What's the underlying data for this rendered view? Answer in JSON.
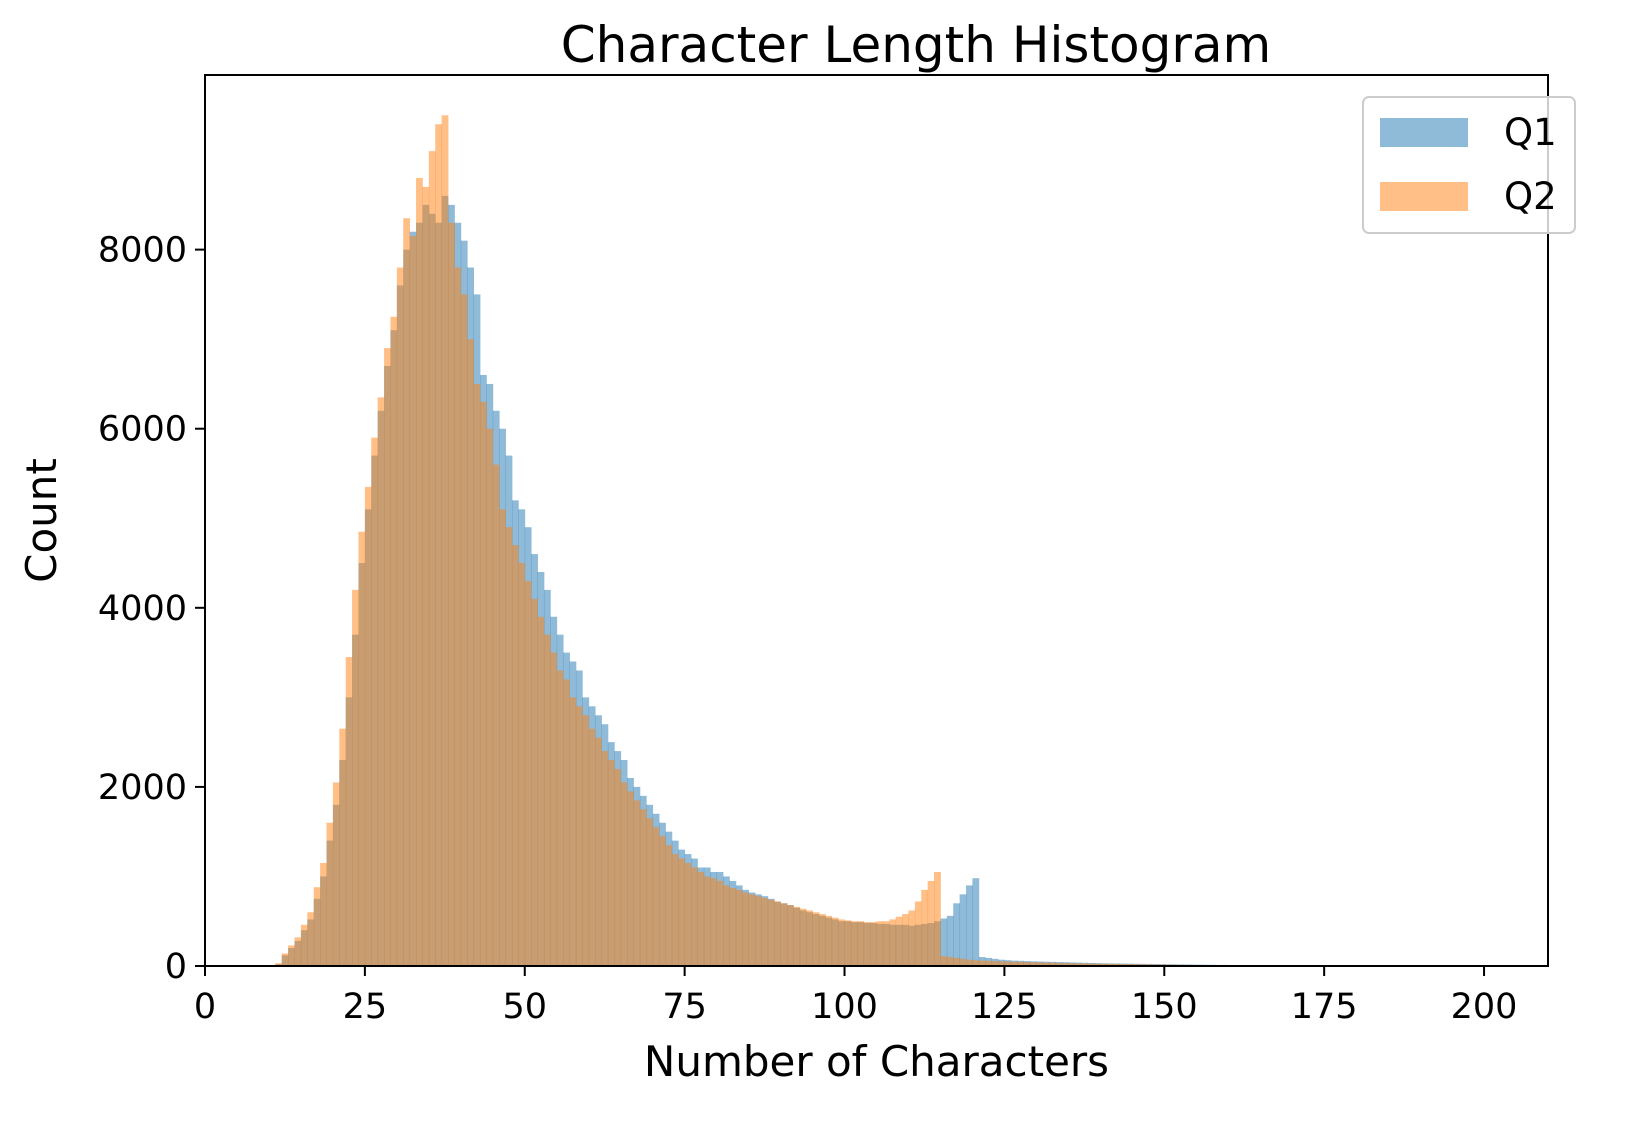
{
  "chart_data": {
    "type": "histogram",
    "title": "Character Length Histogram",
    "xlabel": "Number of Characters",
    "ylabel": "Count",
    "xlim": [
      0,
      210
    ],
    "ylim": [
      0,
      9950
    ],
    "xticks": [
      0,
      25,
      50,
      75,
      100,
      125,
      150,
      175,
      200
    ],
    "yticks": [
      0,
      2000,
      4000,
      6000,
      8000
    ],
    "legend_position": "top-right",
    "bin_start": 11,
    "bin_width": 1,
    "series": [
      {
        "name": "Q1",
        "color": "#1f77b4",
        "opacity": 0.5,
        "values": [
          20,
          120,
          200,
          280,
          400,
          520,
          750,
          1000,
          1400,
          1800,
          2300,
          3000,
          3700,
          4500,
          5100,
          5700,
          6200,
          6700,
          7100,
          7600,
          8000,
          8200,
          8300,
          8500,
          8400,
          8300,
          8600,
          8500,
          8300,
          8100,
          7800,
          7500,
          6600,
          6500,
          6200,
          6000,
          5700,
          5200,
          5100,
          4900,
          4600,
          4400,
          4200,
          3900,
          3700,
          3500,
          3400,
          3300,
          3000,
          2900,
          2800,
          2700,
          2500,
          2400,
          2300,
          2100,
          2000,
          1900,
          1800,
          1700,
          1600,
          1500,
          1400,
          1300,
          1250,
          1200,
          1100,
          1100,
          1050,
          1050,
          1000,
          950,
          900,
          850,
          820,
          800,
          780,
          750,
          720,
          700,
          680,
          650,
          620,
          600,
          580,
          560,
          540,
          520,
          500,
          500,
          490,
          490,
          480,
          480,
          470,
          470,
          460,
          460,
          460,
          450,
          460,
          470,
          480,
          500,
          530,
          560,
          700,
          800,
          900,
          980,
          100,
          90,
          80,
          70,
          65,
          60,
          58,
          55,
          52,
          50,
          48,
          46,
          44,
          42,
          40,
          38,
          36,
          34,
          32,
          30,
          29,
          28,
          27,
          26,
          25,
          24,
          23,
          22,
          21,
          20,
          19,
          18,
          17,
          16,
          15,
          14,
          13,
          12,
          12,
          11,
          11,
          10,
          10,
          10,
          9,
          9,
          9,
          8,
          8,
          8,
          7,
          7,
          7,
          6,
          6,
          6
        ]
      },
      {
        "name": "Q2",
        "color": "#ff7f0e",
        "opacity": 0.5,
        "values": [
          30,
          140,
          230,
          320,
          460,
          600,
          880,
          1150,
          1600,
          2050,
          2650,
          3450,
          4200,
          4850,
          5350,
          5900,
          6350,
          6900,
          7250,
          7800,
          8350,
          8150,
          8800,
          8700,
          9100,
          9400,
          9500,
          8300,
          7800,
          7500,
          7000,
          6500,
          6300,
          6000,
          5600,
          5100,
          4900,
          4700,
          4500,
          4300,
          4100,
          3900,
          3700,
          3500,
          3300,
          3200,
          3000,
          2900,
          2800,
          2650,
          2550,
          2400,
          2300,
          2200,
          2050,
          1950,
          1850,
          1750,
          1650,
          1550,
          1450,
          1350,
          1250,
          1200,
          1150,
          1100,
          1050,
          1000,
          980,
          950,
          900,
          870,
          850,
          820,
          800,
          780,
          760,
          740,
          720,
          700,
          680,
          660,
          640,
          620,
          600,
          580,
          560,
          540,
          520,
          510,
          500,
          500,
          490,
          490,
          500,
          500,
          520,
          550,
          580,
          620,
          720,
          850,
          950,
          1050,
          110,
          100,
          90,
          80,
          70,
          65,
          60,
          58,
          55,
          52,
          50,
          48,
          46,
          44,
          42,
          40,
          38,
          36,
          34,
          32,
          30,
          29,
          28,
          27,
          26,
          25,
          24,
          23,
          22,
          21,
          20,
          19,
          18,
          17,
          16,
          15,
          14,
          13,
          12,
          12,
          11,
          11,
          10,
          10,
          10,
          9,
          9,
          9,
          8,
          8,
          8,
          7,
          7,
          7,
          6,
          6,
          6
        ]
      }
    ]
  }
}
